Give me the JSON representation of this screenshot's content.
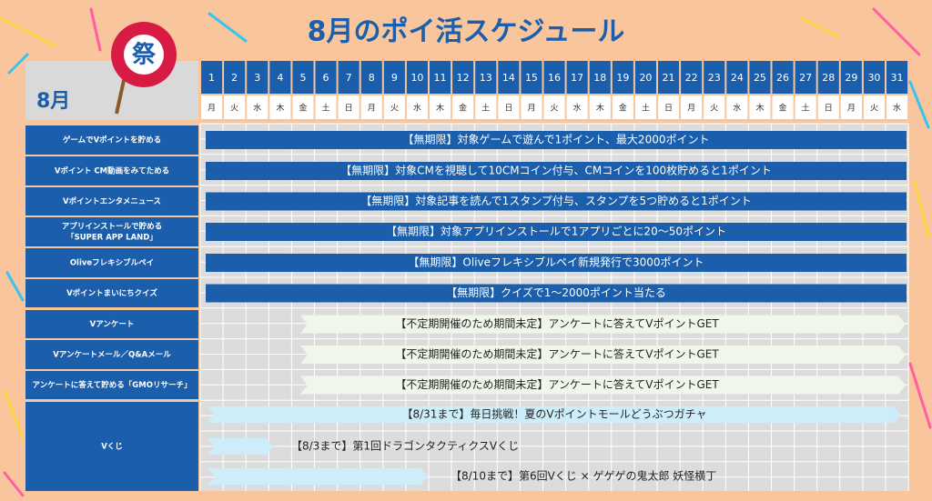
{
  "title": "8月のポイ活スケジュール",
  "month": "8月",
  "icon_text": "祭",
  "days": [
    1,
    2,
    3,
    4,
    5,
    6,
    7,
    8,
    9,
    10,
    11,
    12,
    13,
    14,
    15,
    16,
    17,
    18,
    19,
    20,
    21,
    22,
    23,
    24,
    25,
    26,
    27,
    28,
    29,
    30,
    31
  ],
  "weekdays": [
    "月",
    "火",
    "水",
    "木",
    "金",
    "土",
    "日",
    "月",
    "火",
    "水",
    "木",
    "金",
    "土",
    "日",
    "月",
    "火",
    "水",
    "木",
    "金",
    "土",
    "日",
    "月",
    "火",
    "水",
    "木",
    "金",
    "土",
    "日",
    "月",
    "火",
    "水"
  ],
  "rows": [
    {
      "label": [
        "ゲームでVポイントを貯める"
      ],
      "bars": [
        {
          "text": "【無期限】対象ゲームで遊んで1ポイント、最大2000ポイント"
        }
      ]
    },
    {
      "label": [
        "Vポイント CM動画をみてためる"
      ],
      "bars": [
        {
          "text": "【無期限】対象CMを視聴して10CMコイン付与、CMコインを100枚貯めると1ポイント"
        }
      ]
    },
    {
      "label": [
        "Vポイントエンタメニュース"
      ],
      "bars": [
        {
          "text": "【無期限】対象記事を読んで1スタンプ付与、スタンプを5つ貯めると1ポイント"
        }
      ]
    },
    {
      "label": [
        "アプリインストールで貯める",
        "「SUPER APP LAND」"
      ],
      "bars": [
        {
          "text": "【無期限】対象アプリインストールで1アプリごとに20～50ポイント"
        }
      ]
    },
    {
      "label": [
        "Oliveフレキシブルペイ"
      ],
      "bars": [
        {
          "text": "【無期限】Oliveフレキシブルペイ新規発行で3000ポイント"
        }
      ]
    },
    {
      "label": [
        "Vポイントまいにちクイズ"
      ],
      "bars": [
        {
          "text": "【無期限】クイズで1～2000ポイント当たる"
        }
      ]
    },
    {
      "label": [
        "Vアンケート"
      ],
      "bars": [
        {
          "text": "【不定期開催のため期間未定】アンケートに答えてVポイントGET"
        }
      ]
    },
    {
      "label": [
        "Vアンケートメール／Q&Aメール"
      ],
      "bars": [
        {
          "text": "【不定期開催のため期間未定】アンケートに答えてVポイントGET"
        }
      ]
    },
    {
      "label": [
        "アンケートに答えて貯める「GMOリサーチ」"
      ],
      "bars": [
        {
          "text": "【不定期開催のため期間未定】アンケートに答えてVポイントGET"
        }
      ]
    },
    {
      "label": [
        "Vくじ"
      ],
      "bars": [
        {
          "text": "【8/31まで】毎日挑戦！夏のVポイントモールどうぶつガチャ"
        },
        {
          "text": "【8/3まで】第1回ドラゴンタクティクスVくじ"
        },
        {
          "text": "【8/10まで】第6回Vくじ × ゲゲゲの鬼太郎 妖怪横丁"
        }
      ]
    }
  ]
}
